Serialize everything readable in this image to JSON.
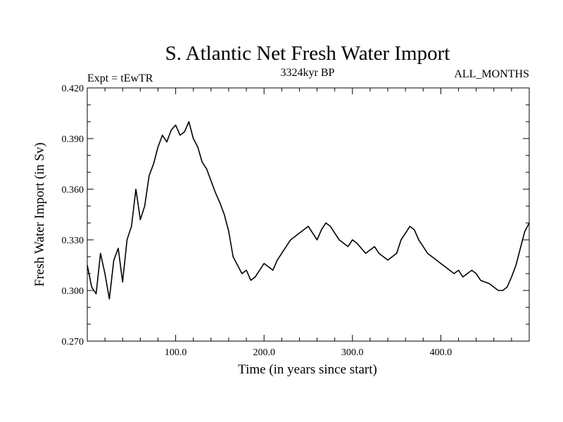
{
  "chart_data": {
    "type": "line",
    "title": "S. Atlantic Net Fresh Water Import",
    "subtitle": "3324kyr BP",
    "experiment_label": "Expt = tEwTR",
    "period_label": "ALL_MONTHS",
    "xlabel": "Time (in years since start)",
    "ylabel": "Fresh Water Import (in Sv)",
    "xlim": [
      0,
      500
    ],
    "ylim": [
      0.27,
      0.42
    ],
    "x_ticks": [
      100,
      200,
      300,
      400
    ],
    "x_tick_labels": [
      "100.0",
      "200.0",
      "300.0",
      "400.0"
    ],
    "y_ticks": [
      0.27,
      0.3,
      0.33,
      0.36,
      0.39,
      0.42
    ],
    "y_tick_labels": [
      "0.270",
      "0.300",
      "0.330",
      "0.360",
      "0.390",
      "0.420"
    ],
    "grid": false,
    "series": [
      {
        "name": "fresh_water_import",
        "x": [
          0,
          5,
          10,
          15,
          20,
          25,
          30,
          35,
          40,
          45,
          50,
          55,
          60,
          65,
          70,
          75,
          80,
          85,
          90,
          95,
          100,
          105,
          110,
          115,
          120,
          125,
          130,
          135,
          140,
          145,
          150,
          155,
          160,
          165,
          170,
          175,
          180,
          185,
          190,
          195,
          200,
          205,
          210,
          215,
          220,
          225,
          230,
          235,
          240,
          245,
          250,
          255,
          260,
          265,
          270,
          275,
          280,
          285,
          290,
          295,
          300,
          305,
          310,
          315,
          320,
          325,
          330,
          335,
          340,
          345,
          350,
          355,
          360,
          365,
          370,
          375,
          380,
          385,
          390,
          395,
          400,
          405,
          410,
          415,
          420,
          425,
          430,
          435,
          440,
          445,
          450,
          455,
          460,
          465,
          470,
          475,
          480,
          485,
          490,
          495,
          500
        ],
        "y": [
          0.315,
          0.302,
          0.298,
          0.322,
          0.31,
          0.295,
          0.318,
          0.325,
          0.305,
          0.33,
          0.338,
          0.36,
          0.342,
          0.35,
          0.368,
          0.375,
          0.385,
          0.392,
          0.388,
          0.395,
          0.398,
          0.392,
          0.394,
          0.4,
          0.39,
          0.385,
          0.376,
          0.372,
          0.365,
          0.358,
          0.352,
          0.345,
          0.335,
          0.32,
          0.315,
          0.31,
          0.312,
          0.306,
          0.308,
          0.312,
          0.316,
          0.314,
          0.312,
          0.318,
          0.322,
          0.326,
          0.33,
          0.332,
          0.334,
          0.336,
          0.338,
          0.334,
          0.33,
          0.336,
          0.34,
          0.338,
          0.334,
          0.33,
          0.328,
          0.326,
          0.33,
          0.328,
          0.325,
          0.322,
          0.324,
          0.326,
          0.322,
          0.32,
          0.318,
          0.32,
          0.322,
          0.33,
          0.334,
          0.338,
          0.336,
          0.33,
          0.326,
          0.322,
          0.32,
          0.318,
          0.316,
          0.314,
          0.312,
          0.31,
          0.312,
          0.308,
          0.31,
          0.312,
          0.31,
          0.306,
          0.305,
          0.304,
          0.302,
          0.3,
          0.3,
          0.302,
          0.308,
          0.315,
          0.325,
          0.335,
          0.34
        ]
      }
    ]
  }
}
